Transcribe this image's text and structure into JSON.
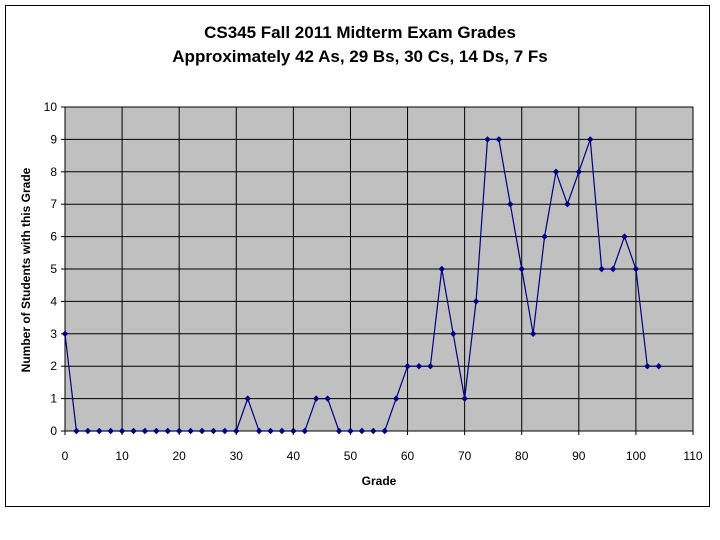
{
  "chart_data": {
    "type": "line",
    "title": "CS345 Fall 2011 Midterm Exam Grades",
    "subtitle": "Approximately 42 As, 29 Bs, 30 Cs, 14 Ds, 7 Fs",
    "xlabel": "Grade",
    "ylabel": "Number of Students with this Grade",
    "xlim": [
      0,
      110
    ],
    "ylim": [
      0,
      10
    ],
    "xticks": [
      "0",
      "10",
      "20",
      "30",
      "40",
      "50",
      "60",
      "70",
      "80",
      "90",
      "100",
      "110"
    ],
    "yticks": [
      "0",
      "1",
      "2",
      "3",
      "4",
      "5",
      "6",
      "7",
      "8",
      "9",
      "10"
    ],
    "grid": true,
    "legend": "none",
    "colors": {
      "plot_background": "#c0c0c0",
      "series": "#000080",
      "grid": "#000000"
    },
    "series": [
      {
        "x": [
          0,
          2,
          4,
          6,
          8,
          10,
          12,
          14,
          16,
          18,
          20,
          22,
          24,
          26,
          28,
          30,
          32,
          34,
          36,
          38,
          40,
          42,
          44,
          46,
          48,
          50,
          52,
          54,
          56,
          58,
          60,
          62,
          64,
          66,
          68,
          70,
          72,
          74,
          76,
          78,
          80,
          82,
          84,
          86,
          88,
          90,
          92,
          94,
          96,
          98,
          100,
          102,
          104
        ],
        "y": [
          3,
          0,
          0,
          0,
          0,
          0,
          0,
          0,
          0,
          0,
          0,
          0,
          0,
          0,
          0,
          0,
          1,
          0,
          0,
          0,
          0,
          0,
          1,
          1,
          0,
          0,
          0,
          0,
          0,
          1,
          2,
          2,
          2,
          5,
          3,
          1,
          4,
          9,
          9,
          7,
          5,
          3,
          6,
          8,
          7,
          8,
          9,
          5,
          5,
          6,
          5,
          2,
          2
        ]
      }
    ]
  }
}
